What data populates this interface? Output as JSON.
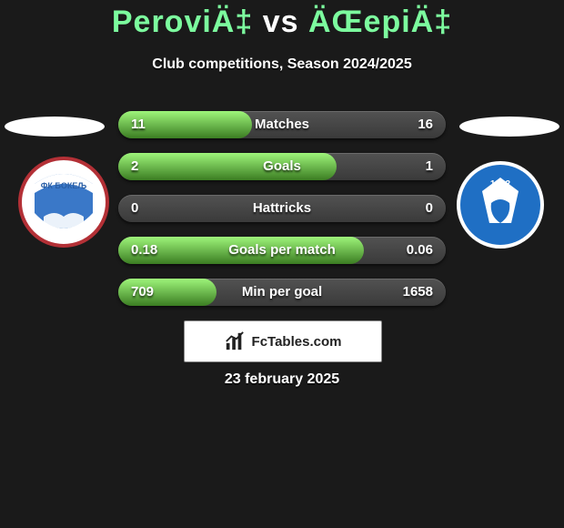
{
  "header": {
    "player1": "PeroviÄ‡",
    "vs": "vs",
    "player2": "ÄŒepiÄ‡",
    "title_fontsize": 34,
    "accent_color": "#7cfc9e"
  },
  "subtitle": "Club competitions, Season 2024/2025",
  "background_color": "#1a1a1a",
  "bar_colors": {
    "track_top": "#525252",
    "track_bottom": "#3a3a3a",
    "fill_top": "#9ef57a",
    "fill_bottom": "#3b7d22"
  },
  "rows": [
    {
      "label": "Matches",
      "left": "11",
      "right": "16",
      "fill_pct": 40.7
    },
    {
      "label": "Goals",
      "left": "2",
      "right": "1",
      "fill_pct": 66.7
    },
    {
      "label": "Hattricks",
      "left": "0",
      "right": "0",
      "fill_pct": 0
    },
    {
      "label": "Goals per match",
      "left": "0.18",
      "right": "0.06",
      "fill_pct": 75
    },
    {
      "label": "Min per goal",
      "left": "709",
      "right": "1658",
      "fill_pct": 30
    }
  ],
  "banner": {
    "brand": "FcTables.com"
  },
  "date": "23 february 2025",
  "badge_left": {
    "ring": "#b33036",
    "body": "#3a78c8",
    "text": "ФК БОКЕЉ"
  },
  "badge_right": {
    "ring": "#ffffff",
    "body": "#1f6fc4",
    "year": "1922"
  }
}
